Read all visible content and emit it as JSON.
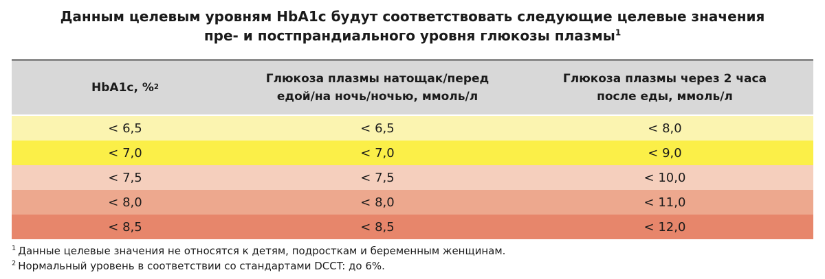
{
  "title": {
    "line1": "Данным целевым уровням HbA1c будут соответствовать следующие целевые значения",
    "line2": "пре- и постпрандиального уровня глюкозы плазмы",
    "line2_sup": "1"
  },
  "table": {
    "headers": [
      {
        "text": "HbA1c, %",
        "sup": "2"
      },
      {
        "text": "Глюкоза плазмы натощак/перед",
        "text2": "едой/на ночь/ночью, ммоль/л"
      },
      {
        "text": "Глюкоза плазмы через 2 часа",
        "text2": "после еды, ммоль/л"
      }
    ],
    "rows": [
      {
        "hba1c": "< 6,5",
        "fasting": "< 6,5",
        "post": "< 8,0",
        "color": "#fbf4b0"
      },
      {
        "hba1c": "< 7,0",
        "fasting": "< 7,0",
        "post": "< 9,0",
        "color": "#fbef48"
      },
      {
        "hba1c": "< 7,5",
        "fasting": "< 7,5",
        "post": "< 10,0",
        "color": "#f5cfbd"
      },
      {
        "hba1c": "< 8,0",
        "fasting": "< 8,0",
        "post": "< 11,0",
        "color": "#eda88e"
      },
      {
        "hba1c": "< 8,5",
        "fasting": "< 8,5",
        "post": "< 12,0",
        "color": "#e7866b"
      }
    ]
  },
  "footnotes": [
    {
      "mark": "1",
      "text": "Данные целевые значения не относятся к детям, подросткам и беременным женщинам."
    },
    {
      "mark": "2",
      "text": "Нормальный уровень в соответствии со стандартами DCCT: до 6%."
    }
  ]
}
